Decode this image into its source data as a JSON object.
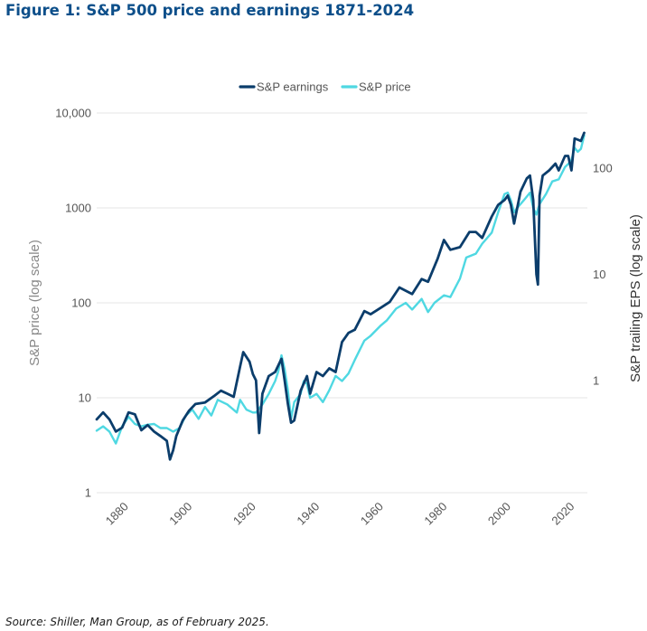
{
  "header": {
    "title": "Figure 1: S&P 500 price and earnings 1871-2024"
  },
  "footer": {
    "source": "Source: Shiller, Man Group, as of February 2025."
  },
  "chart_data": {
    "type": "line",
    "title": "Figure 1: S&P 500 price and earnings 1871-2024",
    "ylabel": "S&P price (log scale)",
    "y2label": "S&P trailing EPS (log scale)",
    "yscale": "log",
    "y2scale": "log",
    "ylim": [
      1,
      10000
    ],
    "y2lim": [
      0.0877,
      330
    ],
    "xlim": [
      1871,
      2025
    ],
    "grid": true,
    "legend_position": "top-center",
    "yticks": [
      {
        "value": 1,
        "label": "1"
      },
      {
        "value": 10,
        "label": "10"
      },
      {
        "value": 100,
        "label": "100"
      },
      {
        "value": 1000,
        "label": "1000"
      },
      {
        "value": 10000,
        "label": "10,000"
      }
    ],
    "y2ticks": [
      {
        "value": 1,
        "label": "1"
      },
      {
        "value": 10,
        "label": "10"
      },
      {
        "value": 100,
        "label": "100"
      }
    ],
    "xticks": [
      1880,
      1900,
      1920,
      1940,
      1960,
      1980,
      2000,
      2020
    ],
    "series": [
      {
        "name": "S&P earnings",
        "axis": "right",
        "color": "#0b3d6b",
        "x": [
          1871,
          1873,
          1875,
          1877,
          1879,
          1881,
          1883,
          1885,
          1887,
          1889,
          1891,
          1893,
          1894,
          1895,
          1896,
          1898,
          1900,
          1902,
          1905,
          1908,
          1910,
          1912,
          1914,
          1916,
          1917,
          1919,
          1920,
          1921,
          1922,
          1923,
          1925,
          1927,
          1929,
          1930,
          1931,
          1932,
          1933,
          1935,
          1937,
          1938,
          1940,
          1942,
          1944,
          1946,
          1948,
          1950,
          1952,
          1955,
          1957,
          1960,
          1963,
          1966,
          1968,
          1970,
          1973,
          1975,
          1978,
          1980,
          1982,
          1985,
          1988,
          1990,
          1992,
          1995,
          1997,
          1999,
          2000,
          2001,
          2002,
          2004,
          2006,
          2007,
          2008,
          2009,
          2009.5,
          2010,
          2011,
          2013,
          2015,
          2016,
          2018,
          2019,
          2020,
          2021,
          2022,
          2023,
          2024
        ],
        "values": [
          0.43,
          0.5,
          0.43,
          0.33,
          0.36,
          0.5,
          0.48,
          0.34,
          0.38,
          0.33,
          0.3,
          0.27,
          0.18,
          0.22,
          0.3,
          0.42,
          0.52,
          0.6,
          0.62,
          0.72,
          0.8,
          0.75,
          0.7,
          1.35,
          1.85,
          1.5,
          1.15,
          1.0,
          0.32,
          0.75,
          1.1,
          1.2,
          1.6,
          1.0,
          0.6,
          0.4,
          0.42,
          0.8,
          1.1,
          0.75,
          1.2,
          1.1,
          1.3,
          1.2,
          2.3,
          2.8,
          3.0,
          4.5,
          4.2,
          4.8,
          5.5,
          7.5,
          7.0,
          6.5,
          9.0,
          8.5,
          14.0,
          21.0,
          17.0,
          18.0,
          25.0,
          25.0,
          22.0,
          35.0,
          45.0,
          50.0,
          55.0,
          45.0,
          30.0,
          60.0,
          80.0,
          85.0,
          50.0,
          10.0,
          8.0,
          55.0,
          85.0,
          95.0,
          110.0,
          95.0,
          130.0,
          130.0,
          95.0,
          190.0,
          185.0,
          180.0,
          215.0
        ]
      },
      {
        "name": "S&P price",
        "axis": "left",
        "color": "#4fd8e2",
        "x": [
          1871,
          1873,
          1875,
          1877,
          1879,
          1881,
          1883,
          1885,
          1887,
          1889,
          1891,
          1893,
          1895,
          1897,
          1899,
          1901,
          1903,
          1905,
          1907,
          1909,
          1912,
          1915,
          1916,
          1918,
          1920,
          1921,
          1923,
          1925,
          1927,
          1928,
          1929,
          1930,
          1931,
          1932,
          1933,
          1935,
          1936,
          1937,
          1938,
          1940,
          1942,
          1944,
          1946,
          1948,
          1950,
          1952,
          1955,
          1957,
          1960,
          1962,
          1965,
          1968,
          1970,
          1973,
          1975,
          1977,
          1980,
          1982,
          1985,
          1987,
          1990,
          1992,
          1995,
          1997,
          1999,
          2000,
          2001,
          2002,
          2003,
          2005,
          2007,
          2008,
          2009,
          2010,
          2012,
          2014,
          2016,
          2018,
          2019,
          2020,
          2021,
          2022,
          2023,
          2024
        ],
        "values": [
          4.5,
          5.0,
          4.4,
          3.3,
          5.0,
          6.3,
          5.3,
          5.0,
          5.2,
          5.3,
          4.8,
          4.8,
          4.4,
          4.8,
          6.5,
          7.5,
          6.0,
          8.0,
          6.5,
          9.5,
          8.5,
          7.0,
          9.5,
          7.5,
          7.0,
          7.0,
          8.5,
          11,
          15,
          19,
          28,
          20,
          12,
          6,
          9,
          11,
          15,
          14,
          10,
          11,
          9,
          12,
          17,
          15,
          18,
          25,
          40,
          45,
          57,
          65,
          87,
          100,
          85,
          110,
          80,
          100,
          120,
          115,
          180,
          300,
          330,
          420,
          550,
          900,
          1400,
          1450,
          1200,
          900,
          1000,
          1200,
          1450,
          1000,
          850,
          1100,
          1400,
          1900,
          2000,
          2700,
          2900,
          3200,
          4300,
          3900,
          4200,
          5800
        ]
      }
    ]
  }
}
